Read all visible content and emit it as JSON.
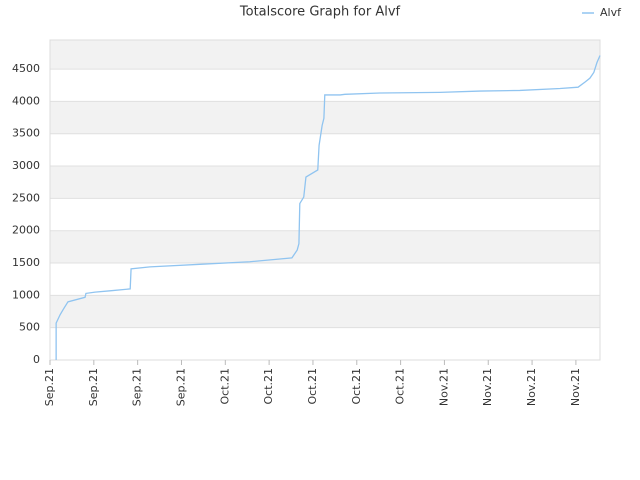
{
  "chart_data": {
    "type": "line",
    "title": "Totalscore Graph for Alvf",
    "x": [
      0.14,
      0.14,
      0.23,
      0.3,
      0.41,
      0.8,
      0.82,
      1.03,
      1.37,
      1.83,
      1.85,
      2.28,
      3.42,
      4.56,
      5.52,
      5.64,
      5.68,
      5.7,
      5.79,
      5.84,
      6.11,
      6.14,
      6.21,
      6.25,
      6.27,
      6.62,
      6.73,
      7.53,
      8.9,
      9.81,
      10.72,
      11.64,
      12.05,
      12.21,
      12.32,
      12.41,
      12.48,
      12.55
    ],
    "series": [
      {
        "name": "Alvf",
        "color": "#90c4f0",
        "values": [
          0,
          570,
          700,
          780,
          900,
          970,
          1030,
          1050,
          1070,
          1100,
          1410,
          1440,
          1480,
          1520,
          1580,
          1700,
          1800,
          2420,
          2520,
          2830,
          2940,
          3320,
          3630,
          3740,
          4100,
          4100,
          4110,
          4130,
          4140,
          4160,
          4170,
          4200,
          4220,
          4300,
          4360,
          4450,
          4600,
          4710
        ]
      }
    ],
    "xlim": [
      0,
      12.55
    ],
    "xticks": [
      {
        "value": 0,
        "label": "Sep.21"
      },
      {
        "value": 1,
        "label": "Sep.21"
      },
      {
        "value": 2,
        "label": "Sep.21"
      },
      {
        "value": 3,
        "label": "Sep.21"
      },
      {
        "value": 4,
        "label": "Oct.21"
      },
      {
        "value": 5,
        "label": "Oct.21"
      },
      {
        "value": 6,
        "label": "Oct.21"
      },
      {
        "value": 7,
        "label": "Oct.21"
      },
      {
        "value": 8,
        "label": "Oct.21"
      },
      {
        "value": 9,
        "label": "Nov.21"
      },
      {
        "value": 10,
        "label": "Nov.21"
      },
      {
        "value": 11,
        "label": "Nov.21"
      },
      {
        "value": 12,
        "label": "Nov.21"
      }
    ],
    "ylim": [
      0,
      4950
    ],
    "yticks": [
      0,
      500,
      1000,
      1500,
      2000,
      2500,
      3000,
      3500,
      4000,
      4500
    ],
    "grid": true,
    "legend": "top-right"
  }
}
